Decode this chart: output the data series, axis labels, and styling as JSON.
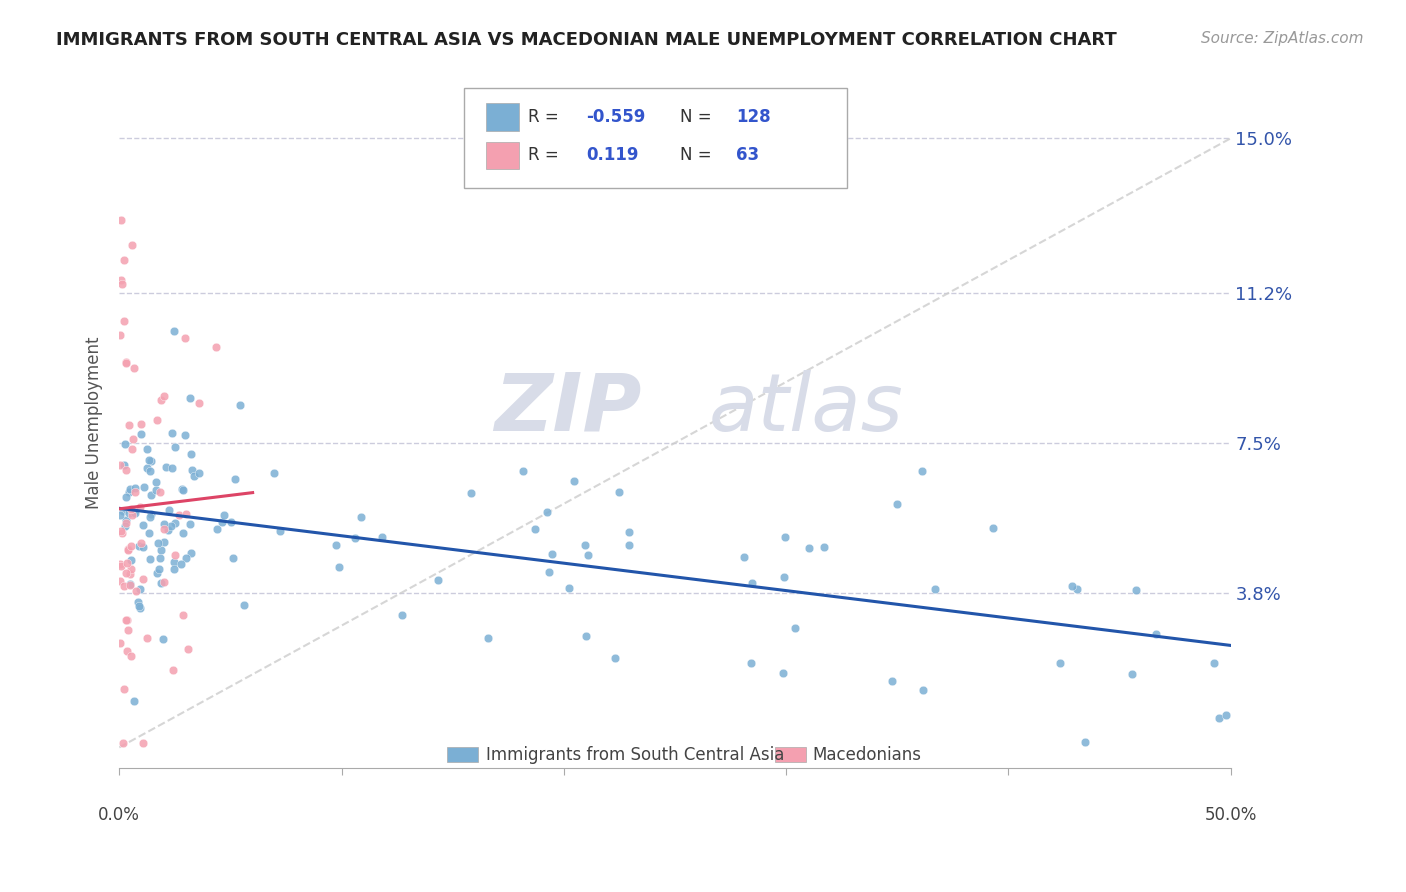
{
  "title": "IMMIGRANTS FROM SOUTH CENTRAL ASIA VS MACEDONIAN MALE UNEMPLOYMENT CORRELATION CHART",
  "source": "Source: ZipAtlas.com",
  "ylabel": "Male Unemployment",
  "xlim": [
    0.0,
    0.5
  ],
  "ylim": [
    -0.005,
    0.165
  ],
  "color_blue": "#7BAFD4",
  "color_pink": "#F4A0B0",
  "color_line_blue": "#2255AA",
  "color_line_pink": "#DD4466",
  "watermark_zip": "ZIP",
  "watermark_atlas": "atlas",
  "ytick_vals": [
    0.038,
    0.075,
    0.112,
    0.15
  ],
  "ytick_labels": [
    "3.8%",
    "7.5%",
    "11.2%",
    "15.0%"
  ]
}
